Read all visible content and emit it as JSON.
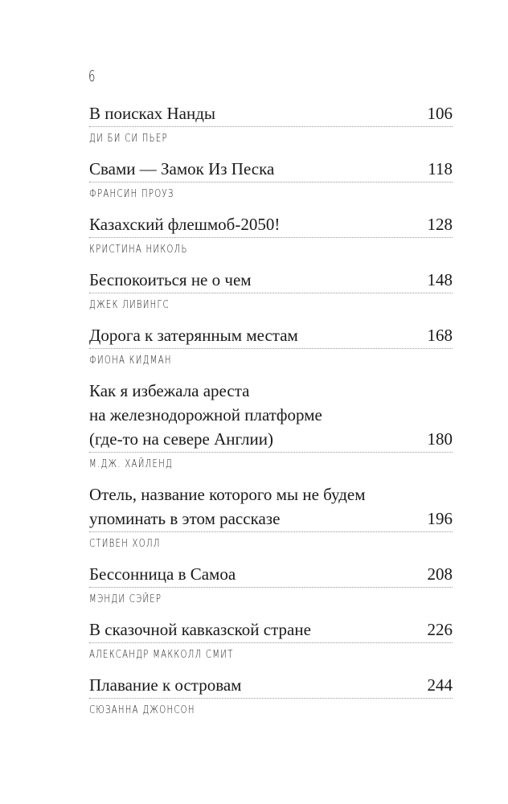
{
  "page_number": "6",
  "entries": [
    {
      "title": "В поисках Нанды",
      "page": "106",
      "author": "ДИ БИ СИ ПЬЕР"
    },
    {
      "title": "Свами — Замок Из Песка",
      "page": "118",
      "author": "ФРАНСИН ПРОУЗ"
    },
    {
      "title": "Казахский флешмоб-2050!",
      "page": "128",
      "author": "КРИСТИНА НИКОЛЬ"
    },
    {
      "title": "Беспокоиться не о чем",
      "page": "148",
      "author": "ДЖЕК ЛИВИНГС"
    },
    {
      "title": "Дорога к затерянным местам",
      "page": "168",
      "author": "ФИОНА КИДМАН"
    },
    {
      "title": "Как я избежала ареста\nна железнодорожной платформе\n(где-то на севере Англии)",
      "page": "180",
      "author": "М.ДЖ. ХАЙЛЕНД"
    },
    {
      "title": "Отель, название которого мы не будем\nупоминать в этом рассказе",
      "page": "196",
      "author": "СТИВЕН ХОЛЛ"
    },
    {
      "title": "Бессонница в Самоа",
      "page": "208",
      "author": "МЭНДИ СЭЙЕР"
    },
    {
      "title": "В сказочной кавказской стране",
      "page": "226",
      "author": "АЛЕКСАНДР МАККОЛЛ СМИТ"
    },
    {
      "title": "Плавание к островам",
      "page": "244",
      "author": "СЮЗАННА ДЖОНСОН"
    }
  ]
}
